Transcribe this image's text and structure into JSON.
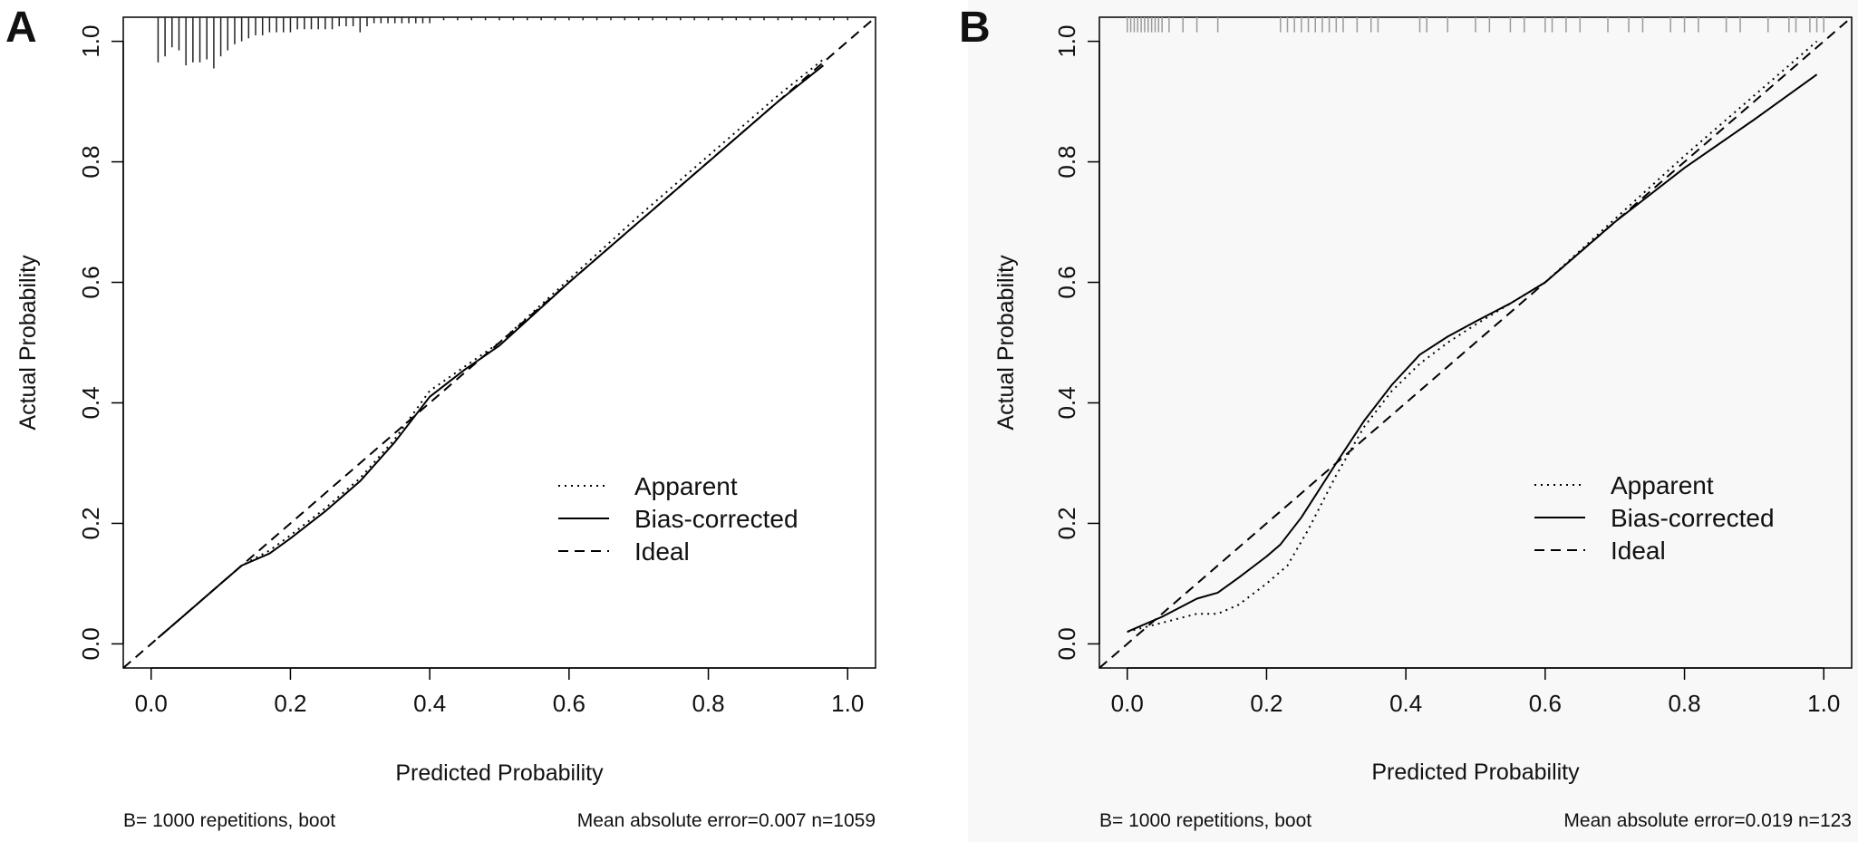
{
  "chart_data": [
    {
      "type": "line",
      "panel": "A",
      "xlabel": "Predicted Probability",
      "ylabel": "Actual Probability",
      "xlim": [
        -0.04,
        1.04
      ],
      "ylim": [
        -0.04,
        1.04
      ],
      "xticks": [
        0.0,
        0.2,
        0.4,
        0.6,
        0.8,
        1.0
      ],
      "yticks": [
        0.0,
        0.2,
        0.4,
        0.6,
        0.8,
        1.0
      ],
      "xtick_labels": [
        "0.0",
        "0.2",
        "0.4",
        "0.6",
        "0.8",
        "1.0"
      ],
      "ytick_labels": [
        "0.0",
        "0.2",
        "0.4",
        "0.6",
        "0.8",
        "1.0"
      ],
      "grid": false,
      "legend": {
        "position": "bottom-right"
      },
      "series": [
        {
          "name": "Apparent",
          "style": "dotted",
          "x": [
            0.01,
            0.05,
            0.1,
            0.13,
            0.17,
            0.2,
            0.25,
            0.3,
            0.35,
            0.4,
            0.45,
            0.5,
            0.6,
            0.7,
            0.8,
            0.9,
            0.965
          ],
          "y": [
            0.01,
            0.05,
            0.1,
            0.13,
            0.155,
            0.18,
            0.225,
            0.275,
            0.34,
            0.42,
            0.46,
            0.5,
            0.605,
            0.71,
            0.81,
            0.91,
            0.97
          ]
        },
        {
          "name": "Bias-corrected",
          "style": "solid",
          "x": [
            0.01,
            0.05,
            0.1,
            0.13,
            0.17,
            0.2,
            0.25,
            0.3,
            0.35,
            0.4,
            0.45,
            0.5,
            0.6,
            0.7,
            0.8,
            0.9,
            0.965
          ],
          "y": [
            0.01,
            0.05,
            0.1,
            0.13,
            0.15,
            0.175,
            0.22,
            0.27,
            0.335,
            0.41,
            0.455,
            0.495,
            0.6,
            0.7,
            0.8,
            0.9,
            0.96
          ]
        },
        {
          "name": "Ideal",
          "style": "dashed",
          "x": [
            -0.04,
            1.04
          ],
          "y": [
            -0.04,
            1.04
          ]
        }
      ],
      "rug": {
        "x": [
          0.01,
          0.02,
          0.03,
          0.04,
          0.05,
          0.06,
          0.07,
          0.08,
          0.09,
          0.1,
          0.11,
          0.12,
          0.13,
          0.14,
          0.15,
          0.16,
          0.17,
          0.18,
          0.19,
          0.2,
          0.21,
          0.22,
          0.23,
          0.24,
          0.25,
          0.26,
          0.27,
          0.28,
          0.29,
          0.3,
          0.31,
          0.32,
          0.33,
          0.34,
          0.35,
          0.36,
          0.37,
          0.38,
          0.39,
          0.4,
          0.42,
          0.44,
          0.46,
          0.48,
          0.5,
          0.52,
          0.54,
          0.56,
          0.58,
          0.6,
          0.62,
          0.64,
          0.66,
          0.68,
          0.7,
          0.72,
          0.74,
          0.76,
          0.78,
          0.8,
          0.82,
          0.84,
          0.86,
          0.88,
          0.9,
          0.92,
          0.94,
          0.96,
          0.98,
          1.0
        ],
        "y_top": [
          0.965,
          0.975,
          0.99,
          0.985,
          0.96,
          0.965,
          0.965,
          0.97,
          0.955,
          0.975,
          0.985,
          0.995,
          1.0,
          1.005,
          1.01,
          1.01,
          1.015,
          1.015,
          1.015,
          1.015,
          1.02,
          1.02,
          1.02,
          1.02,
          1.02,
          1.02,
          1.025,
          1.025,
          1.025,
          1.015,
          1.025,
          1.03,
          1.03,
          1.03,
          1.03,
          1.03,
          1.03,
          1.03,
          1.03,
          1.03,
          1.035,
          1.035,
          1.035,
          1.035,
          1.035,
          1.035,
          1.035,
          1.035,
          1.035,
          1.035,
          1.035,
          1.035,
          1.035,
          1.035,
          1.035,
          1.035,
          1.035,
          1.035,
          1.035,
          1.035,
          1.035,
          1.035,
          1.035,
          1.035,
          1.035,
          1.035,
          1.035,
          1.035,
          1.035,
          1.035
        ],
        "y_base": 1.04,
        "color": "#222222"
      },
      "footnote_left": "B= 1000 repetitions, boot",
      "footnote_right": "Mean absolute error=0.007 n=1059"
    },
    {
      "type": "line",
      "panel": "B",
      "xlabel": "Predicted Probability",
      "ylabel": "Actual Probability",
      "xlim": [
        -0.04,
        1.04
      ],
      "ylim": [
        -0.04,
        1.04
      ],
      "xticks": [
        0.0,
        0.2,
        0.4,
        0.6,
        0.8,
        1.0
      ],
      "yticks": [
        0.0,
        0.2,
        0.4,
        0.6,
        0.8,
        1.0
      ],
      "xtick_labels": [
        "0.0",
        "0.2",
        "0.4",
        "0.6",
        "0.8",
        "1.0"
      ],
      "ytick_labels": [
        "0.0",
        "0.2",
        "0.4",
        "0.6",
        "0.8",
        "1.0"
      ],
      "grid": false,
      "legend": {
        "position": "bottom-right"
      },
      "series": [
        {
          "name": "Apparent",
          "style": "dotted",
          "x": [
            0.0,
            0.05,
            0.1,
            0.13,
            0.16,
            0.2,
            0.23,
            0.26,
            0.3,
            0.34,
            0.38,
            0.42,
            0.46,
            0.5,
            0.55,
            0.6,
            0.7,
            0.8,
            0.9,
            0.99
          ],
          "y": [
            0.02,
            0.035,
            0.05,
            0.05,
            0.065,
            0.1,
            0.13,
            0.19,
            0.28,
            0.36,
            0.42,
            0.465,
            0.5,
            0.53,
            0.565,
            0.6,
            0.705,
            0.81,
            0.91,
            1.0
          ]
        },
        {
          "name": "Bias-corrected",
          "style": "solid",
          "x": [
            0.0,
            0.05,
            0.1,
            0.13,
            0.16,
            0.2,
            0.22,
            0.25,
            0.3,
            0.34,
            0.38,
            0.42,
            0.46,
            0.5,
            0.55,
            0.6,
            0.7,
            0.8,
            0.9,
            0.99
          ],
          "y": [
            0.02,
            0.045,
            0.075,
            0.085,
            0.11,
            0.145,
            0.165,
            0.21,
            0.3,
            0.37,
            0.43,
            0.48,
            0.51,
            0.535,
            0.565,
            0.6,
            0.7,
            0.79,
            0.87,
            0.945
          ]
        },
        {
          "name": "Ideal",
          "style": "dashed",
          "x": [
            -0.04,
            1.04
          ],
          "y": [
            -0.04,
            1.04
          ]
        }
      ],
      "rug": {
        "x": [
          0.0,
          0.005,
          0.01,
          0.015,
          0.02,
          0.025,
          0.03,
          0.035,
          0.04,
          0.045,
          0.05,
          0.06,
          0.08,
          0.1,
          0.13,
          0.22,
          0.23,
          0.24,
          0.25,
          0.26,
          0.27,
          0.28,
          0.29,
          0.3,
          0.31,
          0.33,
          0.35,
          0.36,
          0.42,
          0.43,
          0.46,
          0.5,
          0.52,
          0.55,
          0.57,
          0.6,
          0.61,
          0.63,
          0.65,
          0.69,
          0.72,
          0.74,
          0.78,
          0.8,
          0.82,
          0.86,
          0.88,
          0.92,
          0.95,
          0.96,
          0.98,
          0.99,
          1.0
        ],
        "y_top": [
          1.015,
          1.015,
          1.015,
          1.015,
          1.015,
          1.015,
          1.015,
          1.015,
          1.015,
          1.015,
          1.015,
          1.015,
          1.015,
          1.015,
          1.015,
          1.015,
          1.015,
          1.015,
          1.015,
          1.015,
          1.015,
          1.015,
          1.015,
          1.015,
          1.015,
          1.015,
          1.015,
          1.015,
          1.015,
          1.015,
          1.015,
          1.015,
          1.015,
          1.015,
          1.015,
          1.015,
          1.015,
          1.015,
          1.015,
          1.015,
          1.015,
          1.015,
          1.015,
          1.015,
          1.015,
          1.015,
          1.015,
          1.015,
          1.015,
          1.015,
          1.015,
          1.015,
          1.015
        ],
        "y_base": 1.04,
        "color": "#9a9a9a"
      },
      "footnote_left": "B= 1000 repetitions, boot",
      "footnote_right": "Mean absolute error=0.019 n=123"
    }
  ]
}
